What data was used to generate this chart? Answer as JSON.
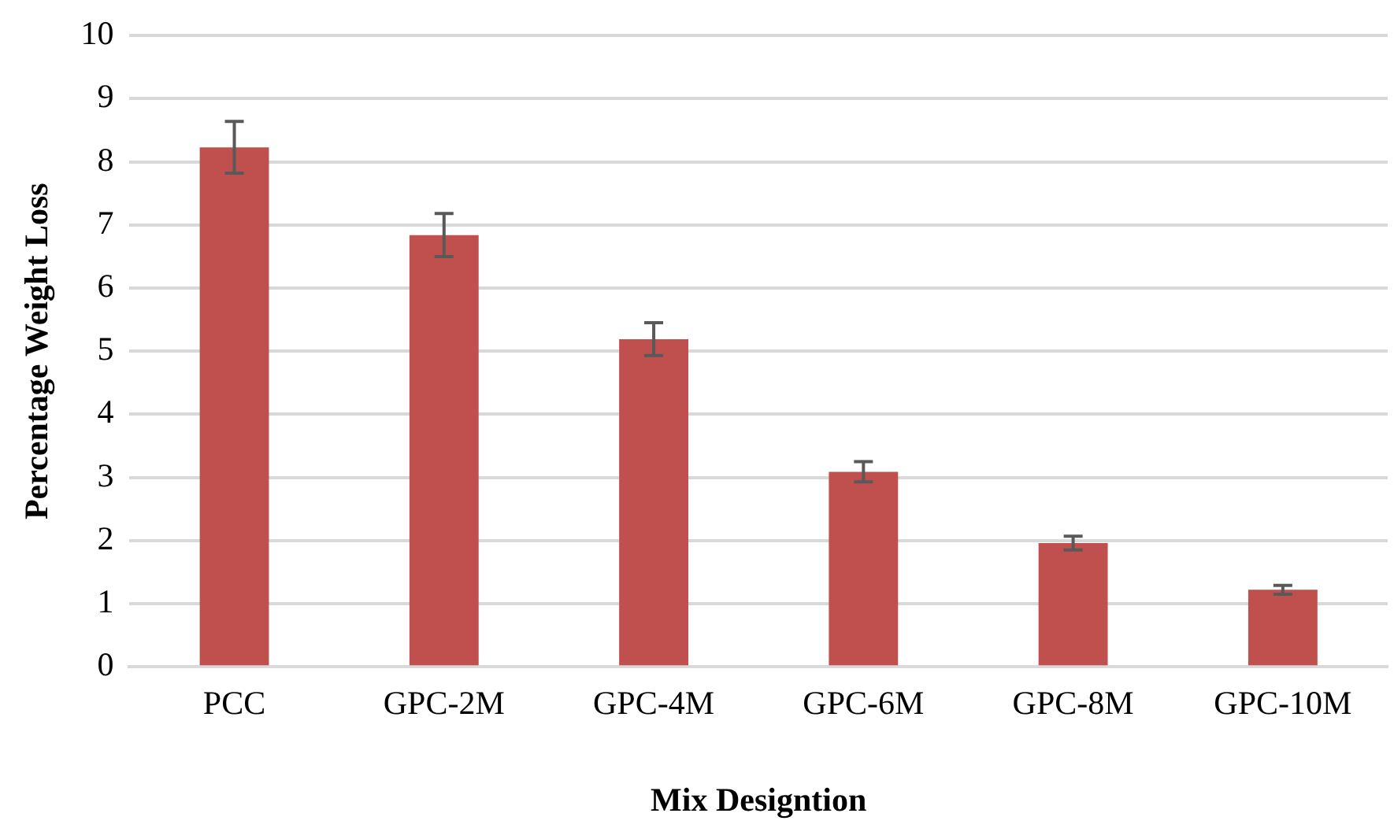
{
  "chart_data": {
    "type": "bar",
    "xlabel": "Mix Designtion",
    "ylabel": "Percentage Weight Loss",
    "categories": [
      "PCC",
      "GPC-2M",
      "GPC-4M",
      "GPC-6M",
      "GPC-8M",
      "GPC-10M"
    ],
    "values": [
      8.23,
      6.84,
      5.19,
      3.09,
      1.96,
      1.22
    ],
    "errors": [
      0.41,
      0.34,
      0.26,
      0.16,
      0.11,
      0.07
    ],
    "color": "#c0504d",
    "ylim": [
      0,
      10
    ],
    "yticks": [
      0,
      1,
      2,
      3,
      4,
      5,
      6,
      7,
      8,
      9,
      10
    ],
    "grid": "y",
    "legend": false
  }
}
